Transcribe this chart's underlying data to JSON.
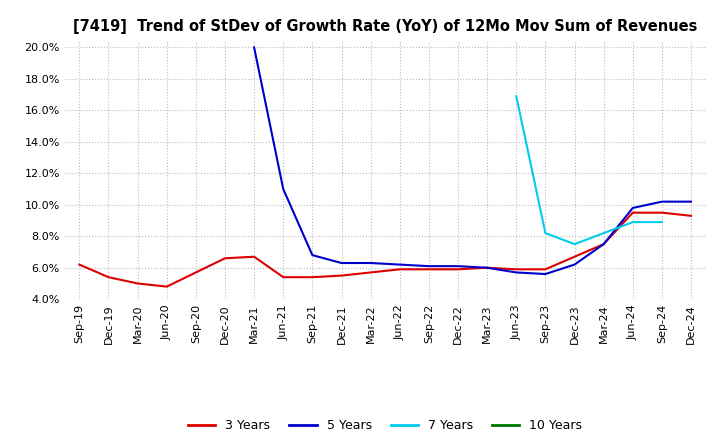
{
  "title": "[7419]  Trend of StDev of Growth Rate (YoY) of 12Mo Mov Sum of Revenues",
  "ylim": [
    0.04,
    0.205
  ],
  "yticks": [
    0.04,
    0.06,
    0.08,
    0.1,
    0.12,
    0.14,
    0.16,
    0.18,
    0.2
  ],
  "background_color": "#ffffff",
  "grid_color": "#bbbbbb",
  "series": {
    "3years": {
      "color": "#dd0000",
      "label": "3 Years",
      "x": [
        "Sep-19",
        "Dec-19",
        "Mar-20",
        "Jun-20",
        "Sep-20",
        "Dec-20",
        "Mar-21",
        "Jun-21",
        "Sep-21",
        "Dec-21",
        "Mar-22",
        "Jun-22",
        "Sep-22",
        "Dec-22",
        "Mar-23",
        "Jun-23",
        "Sep-23",
        "Dec-23",
        "Mar-24",
        "Jun-24",
        "Sep-24",
        "Dec-24"
      ],
      "y": [
        0.062,
        0.054,
        0.05,
        0.048,
        0.057,
        0.066,
        0.067,
        0.054,
        0.054,
        0.055,
        0.057,
        0.059,
        0.059,
        0.059,
        0.06,
        0.059,
        0.059,
        0.067,
        0.075,
        0.095,
        0.095,
        0.093
      ]
    },
    "5years": {
      "color": "#0000cc",
      "label": "5 Years",
      "x": [
        "Mar-21",
        "Jun-21",
        "Sep-21",
        "Dec-21",
        "Mar-22",
        "Jun-22",
        "Sep-22",
        "Dec-22",
        "Mar-23",
        "Jun-23",
        "Sep-23",
        "Dec-23",
        "Mar-24",
        "Jun-24",
        "Sep-24",
        "Dec-24"
      ],
      "y": [
        0.2,
        0.11,
        0.068,
        0.063,
        0.063,
        0.062,
        0.061,
        0.061,
        0.06,
        0.057,
        0.056,
        0.062,
        0.075,
        0.098,
        0.102,
        0.102
      ]
    },
    "7years": {
      "color": "#00ccee",
      "label": "7 Years",
      "x": [
        "Jun-23",
        "Sep-23",
        "Dec-23",
        "Mar-24",
        "Jun-24",
        "Sep-24"
      ],
      "y": [
        0.169,
        0.082,
        0.075,
        0.082,
        0.089,
        0.089
      ]
    },
    "10years": {
      "color": "#007700",
      "label": "10 Years",
      "x": [],
      "y": []
    }
  },
  "xtick_labels": [
    "Sep-19",
    "Dec-19",
    "Mar-20",
    "Jun-20",
    "Sep-20",
    "Dec-20",
    "Mar-21",
    "Jun-21",
    "Sep-21",
    "Dec-21",
    "Mar-22",
    "Jun-22",
    "Sep-22",
    "Dec-22",
    "Mar-23",
    "Jun-23",
    "Sep-23",
    "Dec-23",
    "Mar-24",
    "Jun-24",
    "Sep-24",
    "Dec-24"
  ],
  "legend": {
    "entries": [
      "3 Years",
      "5 Years",
      "7 Years",
      "10 Years"
    ],
    "colors": [
      "#dd0000",
      "#0000cc",
      "#00ccee",
      "#007700"
    ]
  }
}
